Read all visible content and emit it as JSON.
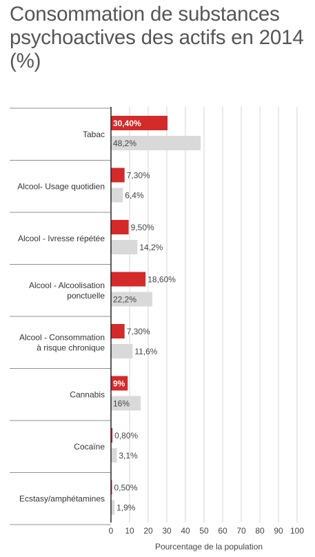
{
  "chart_data": {
    "type": "bar",
    "orientation": "horizontal",
    "title": "Consommation de substances psychoactives des actifs en 2014 (%)",
    "xlabel": "Pourcentage de la population",
    "ylabel": "",
    "xlim": [
      0,
      100
    ],
    "x_ticks": [
      "0",
      "10",
      "20",
      "30",
      "40",
      "50",
      "60",
      "70",
      "80",
      "90",
      "100"
    ],
    "grid": true,
    "categories": [
      "Tabac",
      "Alcool- Usage quotidien",
      "Alcool - Ivresse répétée",
      "Alcool - Alcoolisation ponctuelle",
      "Alcool - Consommation à risque chronique",
      "Cannabis",
      "Cocaïne",
      "Ecstasy/amphétamines"
    ],
    "category_lines": [
      [
        "Tabac"
      ],
      [
        "Alcool- Usage quotidien"
      ],
      [
        "Alcool - Ivresse répétée"
      ],
      [
        "Alcool - Alcoolisation",
        "ponctuelle"
      ],
      [
        "Alcool - Consommation",
        "à risque chronique"
      ],
      [
        "Cannabis"
      ],
      [
        "Cocaïne"
      ],
      [
        "Ecstasy/amphétamines"
      ]
    ],
    "series": [
      {
        "values": [
          30.4,
          7.3,
          9.5,
          18.6,
          7.3,
          9,
          0.8,
          0.5
        ],
        "labels": [
          "30,40%",
          "7,30%",
          "9,50%",
          "18,60%",
          "7,30%",
          "9%",
          "0,80%",
          "0,50%"
        ],
        "color": "#d42a2a"
      },
      {
        "values": [
          48.2,
          6.4,
          14.2,
          22.2,
          11.6,
          16,
          3.1,
          1.9
        ],
        "labels": [
          "48,2%",
          "6,4%",
          "14,2%",
          "22,2%",
          "11,6%",
          "16%",
          "3,1%",
          "1,9%"
        ],
        "color": "#d9d9d9"
      }
    ]
  }
}
